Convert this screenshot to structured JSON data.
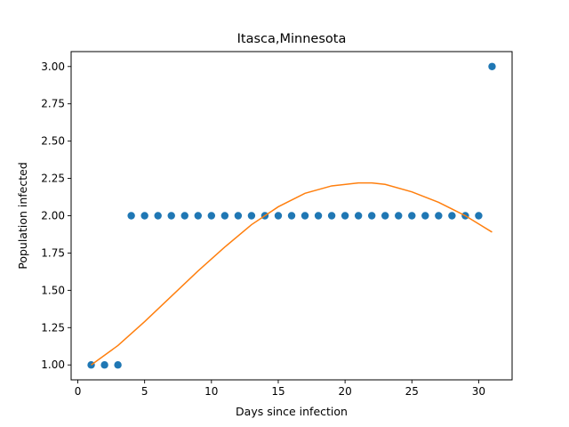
{
  "chart_data": {
    "type": "scatter",
    "title": "Itasca,Minnesota",
    "xlabel": "Days since infection",
    "ylabel": "Population infected",
    "xlim": [
      -0.5,
      32.5
    ],
    "ylim": [
      0.9,
      3.1
    ],
    "xticks": [
      "0",
      "5",
      "10",
      "15",
      "20",
      "25",
      "30"
    ],
    "yticks": [
      "1.00",
      "1.25",
      "1.50",
      "1.75",
      "2.00",
      "2.25",
      "2.50",
      "2.75",
      "3.00"
    ],
    "grid": false,
    "series": [
      {
        "kind": "scatter",
        "color": "#1f77b4",
        "x": [
          1,
          2,
          3,
          4,
          5,
          6,
          7,
          8,
          9,
          10,
          11,
          12,
          13,
          14,
          15,
          16,
          17,
          18,
          19,
          20,
          21,
          22,
          23,
          24,
          25,
          26,
          27,
          28,
          29,
          30,
          31
        ],
        "y": [
          1,
          1,
          1,
          2,
          2,
          2,
          2,
          2,
          2,
          2,
          2,
          2,
          2,
          2,
          2,
          2,
          2,
          2,
          2,
          2,
          2,
          2,
          2,
          2,
          2,
          2,
          2,
          2,
          2,
          2,
          3
        ]
      },
      {
        "kind": "line",
        "color": "#ff7f0e",
        "x": [
          1,
          3,
          5,
          7,
          9,
          11,
          13,
          15,
          17,
          19,
          21,
          22,
          23,
          25,
          27,
          29,
          31
        ],
        "y": [
          1.0,
          1.13,
          1.29,
          1.46,
          1.63,
          1.79,
          1.94,
          2.06,
          2.15,
          2.2,
          2.22,
          2.22,
          2.21,
          2.16,
          2.09,
          2.0,
          1.89
        ]
      }
    ]
  }
}
